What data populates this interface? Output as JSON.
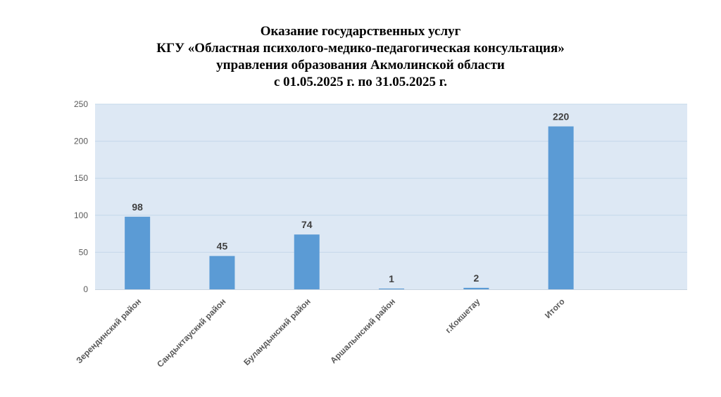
{
  "title": {
    "lines": [
      "Оказание государственных услуг",
      "КГУ «Областная психолого-медико-педагогическая консультация»",
      "управления образования Акмолинской области",
      "с 01.05.2025 г. по 31.05.2025 г."
    ]
  },
  "colors": {
    "plot_background": "#dde8f4",
    "gridline": "#c4d7ea",
    "bar": "#5b9bd5",
    "axis": "#c8d3de"
  },
  "chart_data": {
    "type": "bar",
    "title": "Оказание государственных услуг КГУ «Областная психолого-медико-педагогическая консультация» управления образования Акмолинской области с 01.05.2025 г. по 31.05.2025 г.",
    "categories": [
      "Зерендинский район",
      "Сандыктауский район",
      "Буландынский район",
      "Аршалынский район",
      "г.Кокшетау",
      "Итого"
    ],
    "values": [
      98,
      45,
      74,
      1,
      2,
      220
    ],
    "data_labels": [
      "98",
      "45",
      "74",
      "1",
      "2",
      "220"
    ],
    "ylim": [
      0,
      250
    ],
    "yticks": [
      "0",
      "50",
      "100",
      "150",
      "200",
      "250"
    ],
    "ytick_values": [
      0,
      50,
      100,
      150,
      200,
      250
    ],
    "grid": true,
    "legend": "none"
  }
}
